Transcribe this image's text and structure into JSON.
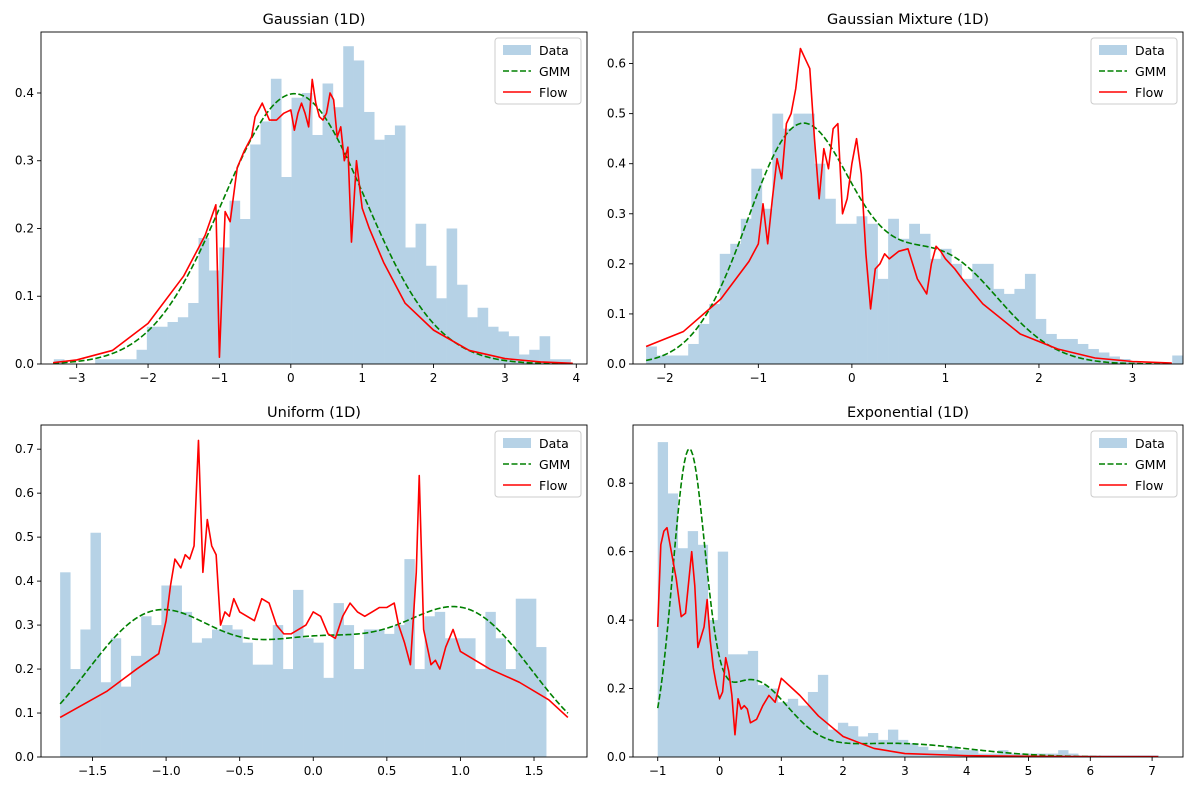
{
  "figure": {
    "background": "#ffffff"
  },
  "style": {
    "hist_color": "#b6d2e6",
    "gmm_color": "#008000",
    "flow_color": "#ff0000"
  },
  "legend": {
    "placement": "top-right",
    "labels": [
      "Data",
      "GMM",
      "Flow"
    ]
  },
  "chart_data": [
    {
      "type": "histogram+line",
      "title": "Gaussian (1D)",
      "xlim": [
        -3.5,
        4.15
      ],
      "ylim": [
        0,
        0.49
      ],
      "xticks": [
        -3,
        -2,
        -1,
        0,
        1,
        2,
        3,
        4
      ],
      "yticks": [
        0.0,
        0.1,
        0.2,
        0.3,
        0.4
      ],
      "ytick_decimals": 1,
      "hist": {
        "bin_start": -3.32,
        "bin_width": 0.1448,
        "values": [
          0.007,
          0,
          0,
          0,
          0.007,
          0.007,
          0.007,
          0.007,
          0.021,
          0.055,
          0.055,
          0.062,
          0.069,
          0.09,
          0.186,
          0.138,
          0.172,
          0.241,
          0.214,
          0.324,
          0.358,
          0.421,
          0.276,
          0.393,
          0.4,
          0.338,
          0.414,
          0.379,
          0.469,
          0.448,
          0.372,
          0.331,
          0.338,
          0.352,
          0.172,
          0.207,
          0.145,
          0.097,
          0.2,
          0.117,
          0.069,
          0.083,
          0.055,
          0.048,
          0.041,
          0.014,
          0.021,
          0.041,
          0.007,
          0.007,
          0,
          0,
          0,
          0,
          0,
          0,
          0,
          0,
          0,
          0,
          0,
          0,
          0,
          0.007
        ]
      },
      "gmm": {
        "mixture": [
          {
            "w": 1.0,
            "mu": 0.05,
            "sigma": 1.0
          }
        ],
        "x_range": [
          -3.33,
          3.95
        ]
      },
      "flow": {
        "x": [
          -3.33,
          -3.0,
          -2.5,
          -2.0,
          -1.5,
          -1.2,
          -1.05,
          -1.0,
          -0.92,
          -0.85,
          -0.75,
          -0.65,
          -0.55,
          -0.5,
          -0.4,
          -0.3,
          -0.2,
          -0.1,
          0.0,
          0.05,
          0.1,
          0.15,
          0.2,
          0.25,
          0.3,
          0.35,
          0.4,
          0.45,
          0.5,
          0.55,
          0.6,
          0.65,
          0.7,
          0.75,
          0.8,
          0.85,
          0.92,
          1.0,
          1.1,
          1.3,
          1.6,
          2.0,
          2.5,
          3.0,
          3.5,
          3.95
        ],
        "y": [
          0.002,
          0.006,
          0.02,
          0.06,
          0.13,
          0.19,
          0.235,
          0.01,
          0.225,
          0.21,
          0.29,
          0.315,
          0.335,
          0.365,
          0.385,
          0.36,
          0.36,
          0.37,
          0.375,
          0.345,
          0.37,
          0.385,
          0.37,
          0.35,
          0.42,
          0.385,
          0.365,
          0.36,
          0.37,
          0.4,
          0.39,
          0.335,
          0.35,
          0.3,
          0.32,
          0.18,
          0.3,
          0.23,
          0.2,
          0.15,
          0.09,
          0.05,
          0.02,
          0.008,
          0.003,
          0.001
        ]
      }
    },
    {
      "type": "histogram+line",
      "title": "Gaussian Mixture (1D)",
      "xlim": [
        -2.34,
        3.54
      ],
      "ylim": [
        0,
        0.663
      ],
      "xticks": [
        -2,
        -1,
        0,
        1,
        2,
        3
      ],
      "yticks": [
        0.0,
        0.1,
        0.2,
        0.3,
        0.4,
        0.5,
        0.6
      ],
      "ytick_decimals": 1,
      "hist": {
        "bin_start": -2.2,
        "bin_width": 0.1125,
        "values": [
          0.035,
          0.017,
          0.017,
          0.017,
          0.04,
          0.08,
          0.12,
          0.22,
          0.24,
          0.29,
          0.39,
          0.31,
          0.5,
          0.47,
          0.5,
          0.5,
          0.4,
          0.33,
          0.28,
          0.28,
          0.295,
          0.28,
          0.17,
          0.29,
          0.25,
          0.28,
          0.26,
          0.21,
          0.23,
          0.2,
          0.17,
          0.2,
          0.2,
          0.15,
          0.14,
          0.15,
          0.18,
          0.09,
          0.06,
          0.05,
          0.05,
          0.04,
          0.03,
          0.023,
          0.015,
          0.01,
          0.005,
          0,
          0,
          0,
          0.017
        ]
      },
      "gmm": {
        "mixture": [
          {
            "w": 0.67,
            "mu": -0.55,
            "sigma": 0.57
          },
          {
            "w": 0.33,
            "mu": 0.95,
            "sigma": 0.62
          }
        ],
        "x_range": [
          -2.2,
          3.42
        ]
      },
      "flow": {
        "x": [
          -2.2,
          -1.8,
          -1.4,
          -1.1,
          -1.0,
          -0.95,
          -0.9,
          -0.85,
          -0.8,
          -0.75,
          -0.7,
          -0.65,
          -0.6,
          -0.55,
          -0.5,
          -0.45,
          -0.4,
          -0.35,
          -0.3,
          -0.25,
          -0.2,
          -0.15,
          -0.1,
          -0.05,
          0.0,
          0.05,
          0.1,
          0.15,
          0.2,
          0.25,
          0.3,
          0.35,
          0.4,
          0.5,
          0.6,
          0.7,
          0.8,
          0.85,
          0.9,
          0.95,
          1.0,
          1.1,
          1.2,
          1.4,
          1.8,
          2.2,
          2.6,
          3.0,
          3.42
        ],
        "y": [
          0.035,
          0.065,
          0.13,
          0.205,
          0.24,
          0.32,
          0.24,
          0.33,
          0.41,
          0.37,
          0.48,
          0.5,
          0.55,
          0.63,
          0.61,
          0.59,
          0.45,
          0.33,
          0.43,
          0.39,
          0.47,
          0.48,
          0.3,
          0.33,
          0.4,
          0.45,
          0.38,
          0.22,
          0.11,
          0.19,
          0.2,
          0.22,
          0.21,
          0.225,
          0.23,
          0.17,
          0.14,
          0.2,
          0.235,
          0.225,
          0.21,
          0.19,
          0.165,
          0.12,
          0.06,
          0.03,
          0.012,
          0.005,
          0.002
        ]
      }
    },
    {
      "type": "histogram+line",
      "title": "Uniform (1D)",
      "xlim": [
        -1.85,
        1.86
      ],
      "ylim": [
        0,
        0.755
      ],
      "xticks": [
        -1.5,
        -1.0,
        -0.5,
        0.0,
        0.5,
        1.0,
        1.5
      ],
      "yticks": [
        0.0,
        0.1,
        0.2,
        0.3,
        0.4,
        0.5,
        0.6,
        0.7
      ],
      "ytick_decimals": 1,
      "hist": {
        "bin_start": -1.72,
        "bin_width": 0.0688,
        "values": [
          0.42,
          0.2,
          0.29,
          0.51,
          0.17,
          0.27,
          0.16,
          0.23,
          0.32,
          0.3,
          0.39,
          0.39,
          0.33,
          0.26,
          0.27,
          0.29,
          0.3,
          0.29,
          0.26,
          0.21,
          0.21,
          0.3,
          0.2,
          0.38,
          0.27,
          0.26,
          0.18,
          0.35,
          0.3,
          0.2,
          0.29,
          0.29,
          0.28,
          0.3,
          0.45,
          0.2,
          0.32,
          0.33,
          0.27,
          0.27,
          0.27,
          0.2,
          0.33,
          0.27,
          0.2,
          0.36,
          0.36,
          0.25
        ]
      },
      "gmm": {
        "mixture": [
          {
            "w": 0.35,
            "mu": -1.1,
            "sigma": 0.45
          },
          {
            "w": 0.3,
            "mu": 0.0,
            "sigma": 0.5
          },
          {
            "w": 0.35,
            "mu": 1.05,
            "sigma": 0.45
          }
        ],
        "x_range": [
          -1.72,
          1.73
        ]
      },
      "flow": {
        "x": [
          -1.72,
          -1.4,
          -1.2,
          -1.05,
          -1.0,
          -0.97,
          -0.94,
          -0.9,
          -0.87,
          -0.84,
          -0.81,
          -0.78,
          -0.75,
          -0.72,
          -0.69,
          -0.66,
          -0.63,
          -0.6,
          -0.57,
          -0.54,
          -0.5,
          -0.45,
          -0.4,
          -0.35,
          -0.3,
          -0.25,
          -0.2,
          -0.15,
          -0.1,
          -0.05,
          0.0,
          0.05,
          0.1,
          0.15,
          0.2,
          0.25,
          0.3,
          0.35,
          0.4,
          0.45,
          0.5,
          0.55,
          0.58,
          0.62,
          0.66,
          0.7,
          0.72,
          0.75,
          0.8,
          0.83,
          0.86,
          0.9,
          0.95,
          1.0,
          1.2,
          1.4,
          1.6,
          1.73
        ],
        "y": [
          0.09,
          0.15,
          0.2,
          0.235,
          0.31,
          0.39,
          0.45,
          0.43,
          0.46,
          0.45,
          0.48,
          0.72,
          0.42,
          0.54,
          0.48,
          0.46,
          0.3,
          0.33,
          0.32,
          0.36,
          0.33,
          0.32,
          0.31,
          0.36,
          0.35,
          0.3,
          0.28,
          0.28,
          0.29,
          0.3,
          0.33,
          0.32,
          0.28,
          0.27,
          0.32,
          0.35,
          0.33,
          0.32,
          0.33,
          0.34,
          0.34,
          0.35,
          0.3,
          0.26,
          0.21,
          0.42,
          0.64,
          0.29,
          0.21,
          0.22,
          0.2,
          0.25,
          0.29,
          0.24,
          0.2,
          0.17,
          0.13,
          0.09
        ]
      }
    },
    {
      "type": "histogram+line",
      "title": "Exponential (1D)",
      "xlim": [
        -1.4,
        7.5
      ],
      "ylim": [
        0,
        0.97
      ],
      "xticks": [
        -1,
        0,
        1,
        2,
        3,
        4,
        5,
        6,
        7
      ],
      "yticks": [
        0.0,
        0.2,
        0.4,
        0.6,
        0.8
      ],
      "ytick_decimals": 1,
      "hist": {
        "bin_start": -1.0,
        "bin_width": 0.162,
        "values": [
          0.92,
          0.77,
          0.61,
          0.66,
          0.62,
          0.4,
          0.6,
          0.3,
          0.3,
          0.31,
          0.21,
          0.2,
          0.16,
          0.17,
          0.15,
          0.19,
          0.24,
          0.08,
          0.1,
          0.09,
          0.06,
          0.07,
          0.05,
          0.08,
          0.05,
          0.04,
          0.03,
          0.02,
          0.02,
          0.03,
          0.02,
          0.02,
          0.01,
          0.01,
          0.02,
          0.01,
          0.01,
          0.01,
          0.01,
          0.01,
          0.02,
          0.01,
          0.005,
          0.005,
          0.005,
          0.005,
          0.005,
          0.005,
          0.005,
          0.005
        ]
      },
      "gmm": {
        "mixture": [
          {
            "w": 0.55,
            "mu": -0.5,
            "sigma": 0.26
          },
          {
            "w": 0.33,
            "mu": 0.5,
            "sigma": 0.6
          },
          {
            "w": 0.12,
            "mu": 2.8,
            "sigma": 1.2
          }
        ],
        "x_range": [
          -1.0,
          7.1
        ]
      },
      "flow": {
        "x": [
          -1.0,
          -0.95,
          -0.9,
          -0.85,
          -0.8,
          -0.7,
          -0.62,
          -0.55,
          -0.5,
          -0.45,
          -0.4,
          -0.35,
          -0.3,
          -0.25,
          -0.2,
          -0.15,
          -0.1,
          -0.05,
          0.0,
          0.05,
          0.1,
          0.15,
          0.2,
          0.25,
          0.3,
          0.35,
          0.4,
          0.45,
          0.5,
          0.6,
          0.7,
          0.8,
          0.9,
          1.0,
          1.3,
          1.6,
          2.0,
          2.5,
          3.0,
          4.0,
          5.0,
          6.0,
          7.1
        ],
        "y": [
          0.38,
          0.62,
          0.66,
          0.67,
          0.62,
          0.52,
          0.41,
          0.42,
          0.51,
          0.6,
          0.5,
          0.32,
          0.35,
          0.38,
          0.46,
          0.34,
          0.26,
          0.21,
          0.17,
          0.19,
          0.29,
          0.25,
          0.18,
          0.065,
          0.17,
          0.14,
          0.15,
          0.14,
          0.1,
          0.11,
          0.15,
          0.18,
          0.16,
          0.23,
          0.18,
          0.12,
          0.06,
          0.025,
          0.01,
          0.004,
          0.002,
          0.001,
          0.001
        ]
      }
    }
  ]
}
